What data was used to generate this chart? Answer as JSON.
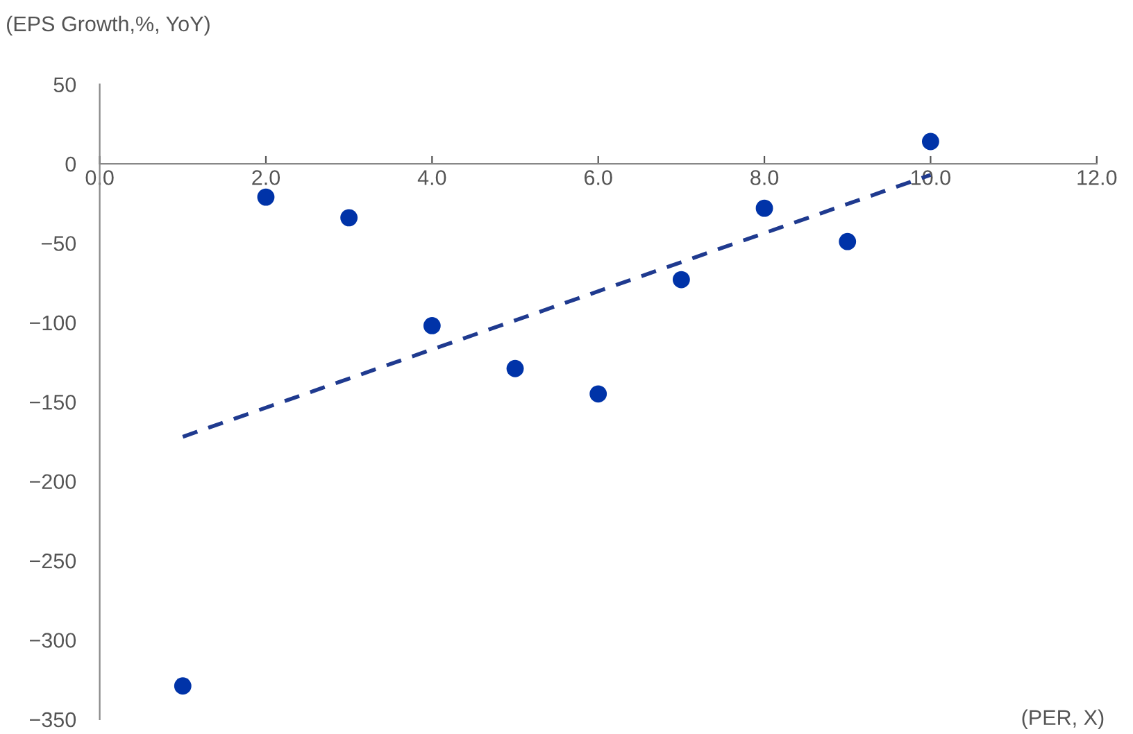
{
  "chart_data": {
    "type": "scatter",
    "xlabel": "(PER, X)",
    "ylabel": "(EPS Growth,%, YoY)",
    "x": [
      1,
      2,
      3,
      4,
      5,
      6,
      7,
      8,
      9,
      10
    ],
    "series": [
      {
        "color": "#0033a8",
        "marker": "circle",
        "values": [
          -329,
          -21,
          -34,
          -102,
          -129,
          -145,
          -73,
          -28,
          -49,
          14
        ]
      },
      {
        "type": "line",
        "color": "#1f3a8f",
        "line_style": "dashed",
        "marker": "none",
        "x": [
          1,
          10
        ],
        "values": [
          -172,
          -7
        ]
      }
    ],
    "xlim": [
      0,
      12
    ],
    "ylim": [
      -350,
      50
    ],
    "xticks": [
      {
        "value": 0,
        "label": "0.0"
      },
      {
        "value": 2,
        "label": "2.0"
      },
      {
        "value": 4,
        "label": "4.0"
      },
      {
        "value": 6,
        "label": "6.0"
      },
      {
        "value": 8,
        "label": "8.0"
      },
      {
        "value": 10,
        "label": "10.0"
      },
      {
        "value": 12,
        "label": "12.0"
      }
    ],
    "yticks": [
      -350,
      -300,
      -250,
      -200,
      -150,
      -100,
      -50,
      0,
      50
    ],
    "grid": false,
    "legend": false
  }
}
